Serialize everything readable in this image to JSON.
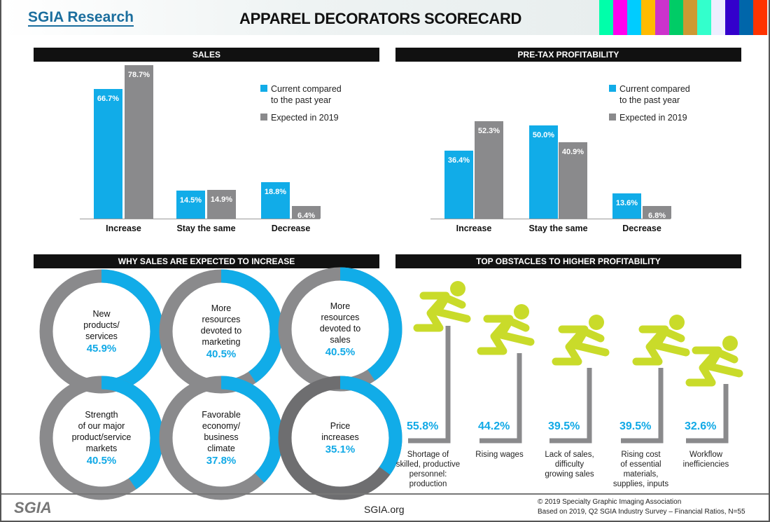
{
  "header": {
    "logo": "SGIA Research",
    "title": "APPAREL DECORATORS SCORECARD"
  },
  "colors": {
    "blue": "#11ace8",
    "grey": "#8a8a8c",
    "lime": "#c9db2a",
    "dark_grey": "#6e6e70"
  },
  "chart_data": [
    {
      "type": "bar",
      "title": "SALES",
      "categories": [
        "Increase",
        "Stay the same",
        "Decrease"
      ],
      "series": [
        {
          "name": "Current compared to the past year",
          "values": [
            66.7,
            14.5,
            18.8
          ]
        },
        {
          "name": "Expected in 2019",
          "values": [
            78.7,
            14.9,
            6.4
          ]
        }
      ],
      "value_labels": [
        [
          "66.7%",
          "14.5%",
          "18.8%"
        ],
        [
          "78.7%",
          "14.9%",
          "6.4%"
        ]
      ],
      "legend": "top-right",
      "unit": "%"
    },
    {
      "type": "bar",
      "title": "PRE-TAX PROFITABILITY",
      "categories": [
        "Increase",
        "Stay the same",
        "Decrease"
      ],
      "series": [
        {
          "name": "Current compared to the past year",
          "values": [
            36.4,
            50.0,
            13.6
          ]
        },
        {
          "name": "Expected in 2019",
          "values": [
            52.3,
            40.9,
            6.8
          ]
        }
      ],
      "value_labels": [
        [
          "36.4%",
          "50.0%",
          "13.6%"
        ],
        [
          "52.3%",
          "40.9%",
          "6.8%"
        ]
      ],
      "legend": "top-right",
      "unit": "%"
    },
    {
      "type": "pie",
      "title": "WHY SALES ARE EXPECTED TO INCREASE",
      "items": [
        {
          "label": "New products/ services",
          "value": 45.9,
          "text": "45.9%"
        },
        {
          "label": "More resources devoted to marketing",
          "value": 40.5,
          "text": "40.5%"
        },
        {
          "label": "More resources devoted to sales",
          "value": 40.5,
          "text": "40.5%"
        },
        {
          "label": "Strength of our major product/service markets",
          "value": 40.5,
          "text": "40.5%"
        },
        {
          "label": "Favorable economy/ business climate",
          "value": 37.8,
          "text": "37.8%"
        },
        {
          "label": "Price increases",
          "value": 35.1,
          "text": "35.1%"
        }
      ]
    },
    {
      "type": "bar",
      "title": "TOP OBSTACLES TO HIGHER PROFITABILITY",
      "items": [
        {
          "label": "Shortage of skilled, productive personnel: production",
          "value": 55.8,
          "text": "55.8%"
        },
        {
          "label": "Rising wages",
          "value": 44.2,
          "text": "44.2%"
        },
        {
          "label": "Lack of sales, difficulty growing sales",
          "value": 39.5,
          "text": "39.5%"
        },
        {
          "label": "Rising cost of essential materials, supplies, inputs",
          "value": 39.5,
          "text": "39.5%"
        },
        {
          "label": "Workflow inefficiencies",
          "value": 32.6,
          "text": "32.6%"
        }
      ]
    }
  ],
  "donut_lines": [
    [
      "New",
      "products/",
      "services"
    ],
    [
      "More",
      "resources",
      "devoted to",
      "marketing"
    ],
    [
      "More",
      "resources",
      "devoted to",
      "sales"
    ],
    [
      "Strength",
      "of our major",
      "product/service",
      "markets"
    ],
    [
      "Favorable",
      "economy/",
      "business",
      "climate"
    ],
    [
      "Price",
      "increases"
    ]
  ],
  "obstacle_lines": [
    [
      "Shortage of",
      "skilled, productive",
      "personnel:",
      "production"
    ],
    [
      "Rising wages"
    ],
    [
      "Lack of sales,",
      "difficulty",
      "growing sales"
    ],
    [
      "Rising cost",
      "of essential",
      "materials,",
      "supplies, inputs"
    ],
    [
      "Workflow",
      "inefficiencies"
    ]
  ],
  "legend_lines": [
    "Current compared",
    "to the past year",
    "Expected in 2019"
  ],
  "footer": {
    "logo": "SGIA",
    "site": "SGIA.org",
    "copyright": "© 2019 Specialty Graphic Imaging Association",
    "source": "Based on 2019, Q2 SGIA Industry Survey – Financial Ratios, N=55"
  }
}
